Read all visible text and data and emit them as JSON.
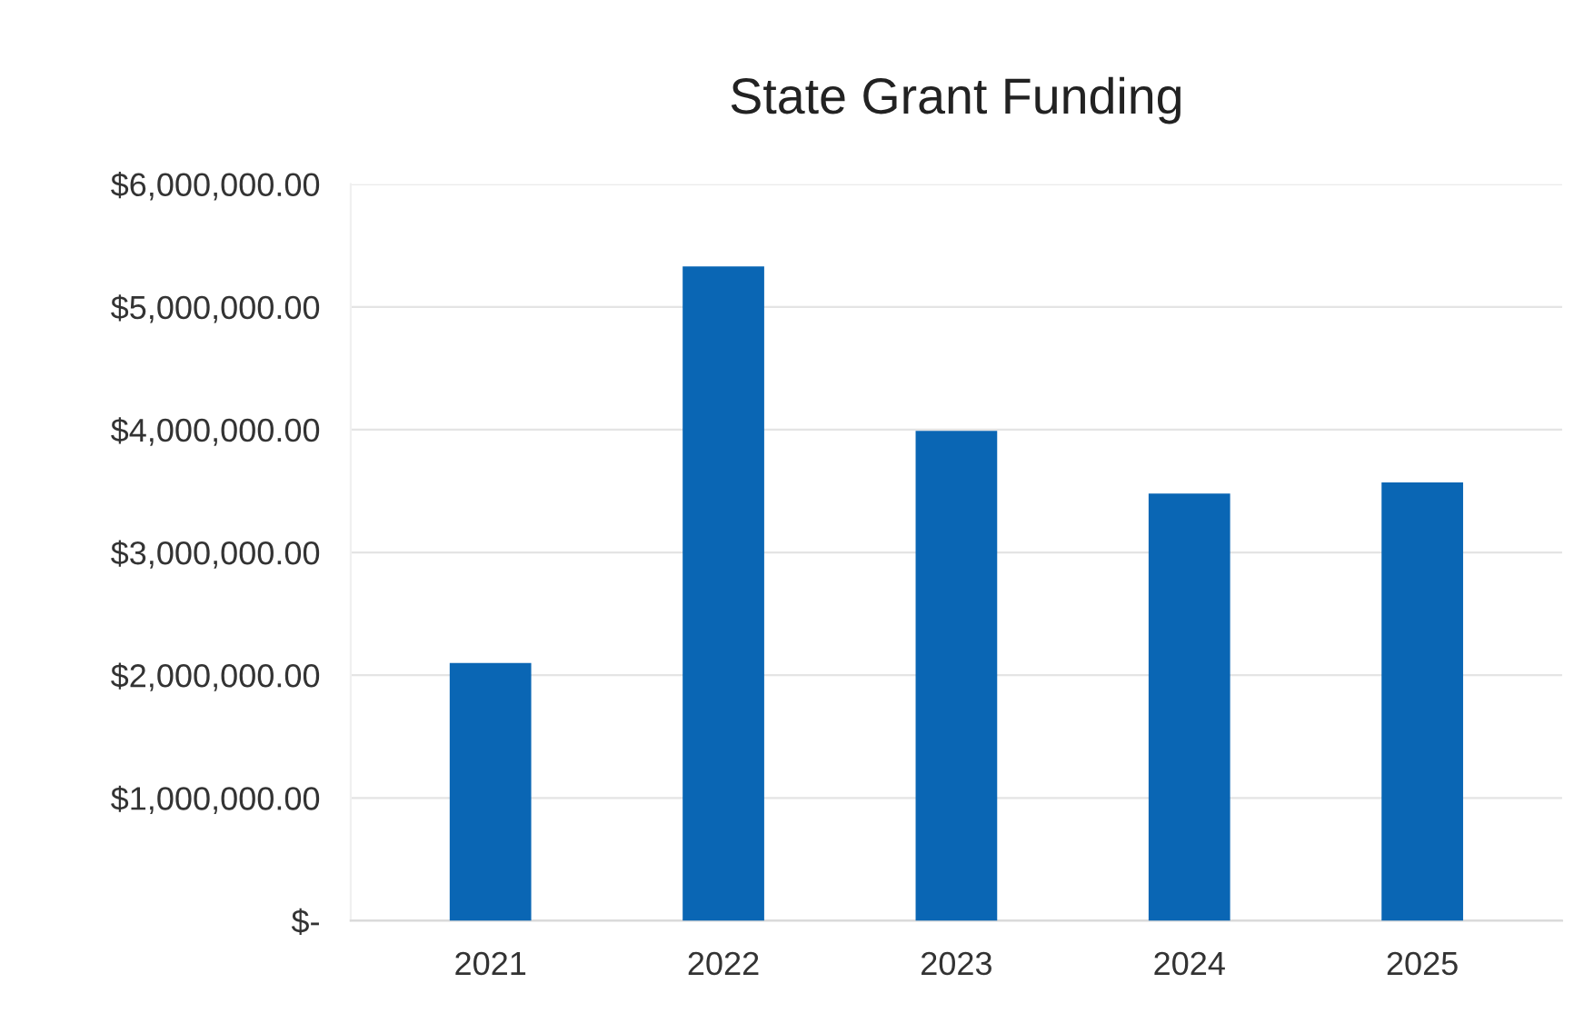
{
  "chart_data": {
    "type": "bar",
    "title": "State Grant Funding",
    "categories": [
      "2021",
      "2022",
      "2023",
      "2024",
      "2025"
    ],
    "values": [
      2100000,
      5330000,
      3990000,
      3480000,
      3570000
    ],
    "color": "#0a66b4",
    "ylim": [
      0,
      6000000
    ],
    "yticks": [
      {
        "value": 0,
        "label": "$-"
      },
      {
        "value": 1000000,
        "label": "$1,000,000.00"
      },
      {
        "value": 2000000,
        "label": "$2,000,000.00"
      },
      {
        "value": 3000000,
        "label": "$3,000,000.00"
      },
      {
        "value": 4000000,
        "label": "$4,000,000.00"
      },
      {
        "value": 5000000,
        "label": "$5,000,000.00"
      },
      {
        "value": 6000000,
        "label": "$6,000,000.00"
      }
    ],
    "grid": "y"
  }
}
